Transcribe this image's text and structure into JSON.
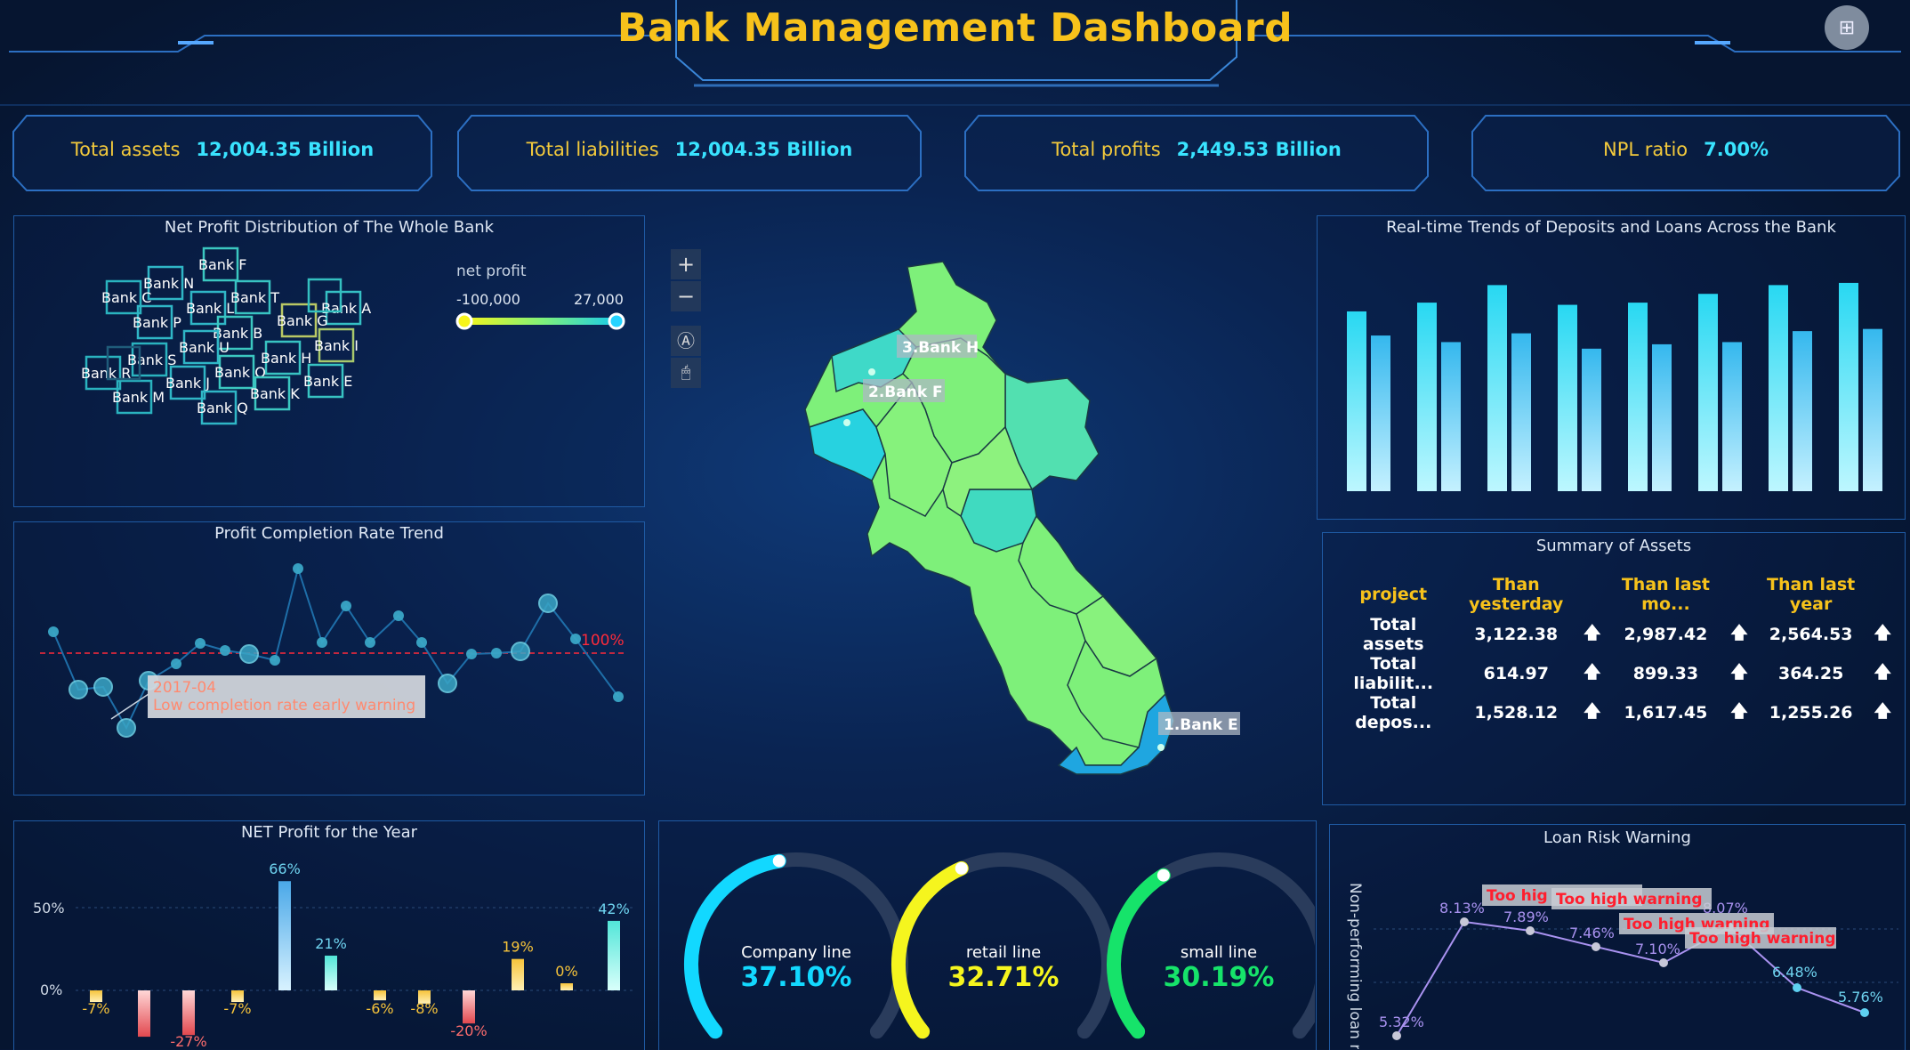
{
  "header": {
    "title": "Bank Management Dashboard",
    "fullscreen_icon": "grid-icon"
  },
  "kpis": [
    {
      "label": "Total assets",
      "value": "12,004.35 Billion"
    },
    {
      "label": "Total liabilities",
      "value": "12,004.35 Billion"
    },
    {
      "label": "Total profits",
      "value": "2,449.53 Billion"
    },
    {
      "label": "NPL ratio",
      "value": "7.00%"
    }
  ],
  "net_profit_dist": {
    "title": "Net Profit Distribution of The Whole Bank",
    "legend_title": "net profit",
    "legend_min": "-100,000",
    "legend_max": "27,000",
    "banks": [
      "Bank F",
      "Bank N",
      "Bank C",
      "Bank T",
      "Bank L",
      "Bank A",
      "Bank P",
      "Bank G",
      "Bank B",
      "Bank I",
      "Bank U",
      "Bank S",
      "Bank H",
      "Bank R",
      "Bank O",
      "Bank J",
      "Bank E",
      "Bank M",
      "Bank K",
      "Bank Q"
    ]
  },
  "profit_trend": {
    "title": "Profit Completion Rate Trend",
    "threshold_label": "100%",
    "tooltip_date": "2017-04",
    "tooltip_text": "Low completion rate early warning"
  },
  "net_profit_year": {
    "title": "NET Profit for the Year",
    "y_ticks": [
      "50%",
      "0%"
    ]
  },
  "map": {
    "labels": [
      "3.Bank H",
      "2.Bank F",
      "1.Bank E"
    ],
    "controls": {
      "zoom_in": "+",
      "zoom_out": "−",
      "reset": "Ⓐ",
      "mouse": "🖱"
    }
  },
  "deposit_trend": {
    "title": "Real-time Trends of Deposits and Loans Across the Bank"
  },
  "summary": {
    "title": "Summary of Assets",
    "headers": [
      "project",
      "Than yesterday",
      "Than last mo...",
      "Than last year"
    ],
    "rows": [
      {
        "name": "Total assets",
        "v1": "3,122.38",
        "v2": "2,987.42",
        "v3": "2,564.53"
      },
      {
        "name": "Total liabilit...",
        "v1": "614.97",
        "v2": "899.33",
        "v3": "364.25"
      },
      {
        "name": "Total depos...",
        "v1": "1,528.12",
        "v2": "1,617.45",
        "v3": "1,255.26"
      }
    ],
    "arrow_glyph": "🡅"
  },
  "gauges": [
    {
      "label": "Company line",
      "value": "37.10%",
      "fraction": 0.371,
      "color": "#12d8ff"
    },
    {
      "label": "retail line",
      "value": "32.71%",
      "fraction": 0.3271,
      "color": "#f5f51e"
    },
    {
      "label": "small line",
      "value": "30.19%",
      "fraction": 0.3019,
      "color": "#16e36a"
    }
  ],
  "loan_risk": {
    "title": "Loan Risk Warning",
    "ylabel": "Non-performing loan r",
    "warning_text": "Too high warning",
    "warning_partial": "Too hig"
  },
  "chart_data": [
    {
      "type": "line",
      "title": "Profit Completion Rate Trend",
      "threshold": "100%",
      "annotations": [
        "2017-04",
        "Low completion rate early warning"
      ]
    },
    {
      "type": "bar",
      "title": "NET Profit for the Year",
      "values": [
        -7,
        -28,
        -27,
        -7,
        66,
        21,
        -6,
        -8,
        -20,
        19,
        0,
        42
      ],
      "labels": [
        "-7%",
        "",
        "-27%",
        "-7%",
        "66%",
        "21%",
        "-6%",
        "-8%",
        "-20%",
        "19%",
        "0%",
        "42%"
      ]
    },
    {
      "type": "bar",
      "title": "Real-time Trends of Deposits and Loans Across the Bank",
      "series": [
        {
          "values": [
            0.82,
            0.86,
            0.94,
            0.85,
            0.86,
            0.9,
            0.94,
            0.95
          ]
        },
        {
          "values": [
            0.71,
            0.68,
            0.72,
            0.65,
            0.67,
            0.68,
            0.73,
            0.74
          ]
        }
      ]
    },
    {
      "type": "line",
      "title": "Loan Risk Warning",
      "values": [
        5.32,
        8.13,
        7.89,
        7.46,
        7.1,
        8.07,
        6.48,
        5.76
      ],
      "labels": [
        "5.32%",
        "8.13%",
        "7.89%",
        "7.46%",
        "7.10%",
        "8.07%",
        "6.48%",
        "5.76%"
      ]
    }
  ]
}
